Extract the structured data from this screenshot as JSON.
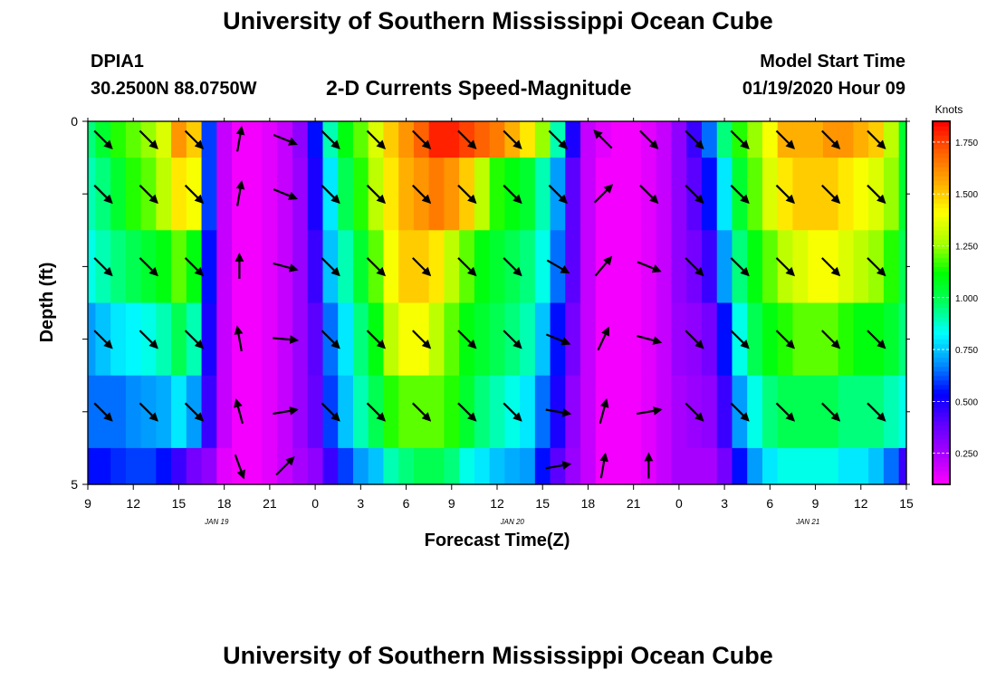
{
  "header": {
    "title": "University of Southern Mississippi Ocean Cube",
    "station": "DPIA1",
    "coords": "30.2500N 88.0750W",
    "subtitle": "2-D Currents Speed-Magnitude",
    "model_label": "Model Start Time",
    "model_time": "01/19/2020 Hour 09"
  },
  "footer": {
    "title": "University of Southern Mississippi Ocean Cube"
  },
  "colorbar": {
    "unit": "Knots",
    "ticks": [
      "0.250",
      "0.500",
      "0.750",
      "1.000",
      "1.250",
      "1.500",
      "1.750"
    ],
    "tick_values": [
      0.25,
      0.5,
      0.75,
      1.0,
      1.25,
      1.5,
      1.75
    ],
    "range": [
      0.1,
      1.85
    ],
    "colors": [
      "#ff00ff",
      "#aa00ff",
      "#6000ff",
      "#0000ff",
      "#0090ff",
      "#00ffff",
      "#00ff60",
      "#00ff00",
      "#aaff00",
      "#ffff00",
      "#ffaa00",
      "#ff6000",
      "#ff0000"
    ]
  },
  "chart_data": {
    "type": "heatmap",
    "title": "2-D Currents Speed-Magnitude",
    "xlabel": "Forecast Time(Z)",
    "ylabel": "Depth (ft)",
    "x_range": [
      9,
      63
    ],
    "y_range": [
      0,
      5
    ],
    "x_tick_values": [
      9,
      12,
      15,
      18,
      21,
      24,
      27,
      30,
      33,
      36,
      39,
      42,
      45,
      48,
      51,
      54,
      57,
      60,
      63
    ],
    "x_tick_labels": [
      "9",
      "12",
      "15",
      "18",
      "21",
      "0",
      "3",
      "6",
      "9",
      "12",
      "15",
      "18",
      "21",
      "0",
      "3",
      "6",
      "9",
      "12",
      "15"
    ],
    "date_labels": [
      {
        "label": "JAN 19",
        "x": 17.5
      },
      {
        "label": "JAN 20",
        "x": 37
      },
      {
        "label": "JAN 21",
        "x": 56.5
      }
    ],
    "y_tick_labels": [
      "0",
      "5"
    ],
    "y_tick_values": [
      0,
      1,
      2,
      3,
      4,
      5
    ],
    "depth_rows": [
      0.25,
      1,
      2,
      3,
      4,
      4.75
    ],
    "row_edges": [
      0,
      0.5,
      1.5,
      2.5,
      3.5,
      4.5,
      5
    ],
    "time_hours": [
      9,
      10,
      11,
      12,
      13,
      14,
      15,
      16,
      17,
      18,
      19,
      20,
      21,
      22,
      23,
      24,
      25,
      26,
      27,
      28,
      29,
      30,
      31,
      32,
      33,
      34,
      35,
      36,
      37,
      38,
      39,
      40,
      41,
      42,
      43,
      44,
      45,
      46,
      47,
      48,
      49,
      50,
      51,
      52,
      53,
      54,
      55,
      56,
      57,
      58,
      59,
      60,
      61,
      62,
      63
    ],
    "speed_knots": [
      [
        0.95,
        1.05,
        1.15,
        1.2,
        1.25,
        1.35,
        1.6,
        1.5,
        0.6,
        0.2,
        0.12,
        0.12,
        0.15,
        0.2,
        0.3,
        0.55,
        0.9,
        1.1,
        1.2,
        1.35,
        1.5,
        1.6,
        1.7,
        1.8,
        1.8,
        1.75,
        1.7,
        1.65,
        1.55,
        1.45,
        1.25,
        0.9,
        0.5,
        0.2,
        0.15,
        0.12,
        0.12,
        0.15,
        0.2,
        0.3,
        0.45,
        0.65,
        0.95,
        1.15,
        1.25,
        1.4,
        1.55,
        1.55,
        1.55,
        1.6,
        1.6,
        1.55,
        1.5,
        1.3,
        1.05
      ],
      [
        0.9,
        0.95,
        1.05,
        1.15,
        1.2,
        1.3,
        1.45,
        1.4,
        0.6,
        0.2,
        0.12,
        0.12,
        0.15,
        0.2,
        0.28,
        0.5,
        0.8,
        1.0,
        1.15,
        1.3,
        1.45,
        1.55,
        1.6,
        1.65,
        1.6,
        1.5,
        1.3,
        1.15,
        1.1,
        1.05,
        0.9,
        0.7,
        0.4,
        0.2,
        0.12,
        0.12,
        0.12,
        0.15,
        0.2,
        0.3,
        0.4,
        0.55,
        0.8,
        1.05,
        1.2,
        1.35,
        1.45,
        1.5,
        1.5,
        1.5,
        1.45,
        1.4,
        1.35,
        1.25,
        1.05
      ],
      [
        0.85,
        0.9,
        0.95,
        1.0,
        1.05,
        1.1,
        1.2,
        1.1,
        0.55,
        0.2,
        0.12,
        0.12,
        0.15,
        0.2,
        0.28,
        0.45,
        0.75,
        0.9,
        1.05,
        1.2,
        1.4,
        1.5,
        1.5,
        1.45,
        1.3,
        1.2,
        1.1,
        1.05,
        1.0,
        0.95,
        0.85,
        0.65,
        0.4,
        0.2,
        0.12,
        0.12,
        0.12,
        0.15,
        0.2,
        0.3,
        0.35,
        0.45,
        0.7,
        0.95,
        1.1,
        1.2,
        1.3,
        1.35,
        1.4,
        1.4,
        1.35,
        1.3,
        1.25,
        1.15,
        1.0
      ],
      [
        0.7,
        0.75,
        0.8,
        0.82,
        0.85,
        0.9,
        1.0,
        0.9,
        0.5,
        0.2,
        0.12,
        0.12,
        0.15,
        0.2,
        0.28,
        0.4,
        0.65,
        0.8,
        0.95,
        1.1,
        1.3,
        1.4,
        1.4,
        1.3,
        1.2,
        1.1,
        1.05,
        1.0,
        0.95,
        0.9,
        0.75,
        0.55,
        0.35,
        0.2,
        0.12,
        0.12,
        0.12,
        0.15,
        0.2,
        0.28,
        0.3,
        0.35,
        0.55,
        0.85,
        1.0,
        1.1,
        1.15,
        1.2,
        1.2,
        1.2,
        1.15,
        1.1,
        1.1,
        1.05,
        0.95
      ],
      [
        0.65,
        0.65,
        0.65,
        0.68,
        0.7,
        0.72,
        0.8,
        0.7,
        0.45,
        0.2,
        0.12,
        0.12,
        0.15,
        0.2,
        0.28,
        0.38,
        0.6,
        0.75,
        0.9,
        1.0,
        1.15,
        1.2,
        1.2,
        1.2,
        1.15,
        1.05,
        0.95,
        0.9,
        0.85,
        0.8,
        0.65,
        0.5,
        0.3,
        0.2,
        0.12,
        0.12,
        0.12,
        0.15,
        0.2,
        0.25,
        0.28,
        0.3,
        0.45,
        0.7,
        0.85,
        0.95,
        1.0,
        1.0,
        1.0,
        1.0,
        0.95,
        0.95,
        0.95,
        0.9,
        0.85
      ],
      [
        0.55,
        0.55,
        0.58,
        0.6,
        0.6,
        0.55,
        0.45,
        0.35,
        0.3,
        0.15,
        0.12,
        0.12,
        0.15,
        0.2,
        0.25,
        0.3,
        0.45,
        0.6,
        0.7,
        0.75,
        0.9,
        0.95,
        1.0,
        1.0,
        0.95,
        0.85,
        0.8,
        0.75,
        0.72,
        0.7,
        0.55,
        0.4,
        0.28,
        0.2,
        0.12,
        0.12,
        0.12,
        0.15,
        0.2,
        0.25,
        0.25,
        0.25,
        0.35,
        0.55,
        0.7,
        0.8,
        0.85,
        0.85,
        0.85,
        0.85,
        0.8,
        0.8,
        0.75,
        0.65,
        0.45
      ]
    ],
    "vector_times": [
      10,
      13,
      16,
      19,
      22,
      25,
      28,
      31,
      34,
      37,
      40,
      43,
      46,
      49,
      52,
      55,
      58,
      61
    ],
    "vector_direction_deg": [
      [
        135,
        135,
        135,
        10,
        112,
        135,
        135,
        135,
        135,
        135,
        135,
        315,
        135,
        135,
        135,
        135,
        135,
        135
      ],
      [
        135,
        135,
        135,
        10,
        112,
        135,
        135,
        135,
        135,
        135,
        135,
        45,
        135,
        135,
        135,
        135,
        135,
        135
      ],
      [
        135,
        135,
        135,
        0,
        105,
        135,
        135,
        135,
        135,
        135,
        120,
        40,
        112,
        135,
        135,
        135,
        135,
        135
      ],
      [
        135,
        135,
        135,
        350,
        95,
        135,
        135,
        135,
        135,
        135,
        112,
        25,
        105,
        135,
        135,
        135,
        135,
        135
      ],
      [
        135,
        135,
        135,
        345,
        80,
        135,
        135,
        135,
        135,
        135,
        100,
        15,
        80,
        135,
        135,
        135,
        135,
        135
      ],
      [
        null,
        null,
        null,
        160,
        45,
        null,
        null,
        null,
        null,
        null,
        80,
        10,
        0,
        null,
        null,
        null,
        null,
        null
      ]
    ]
  }
}
